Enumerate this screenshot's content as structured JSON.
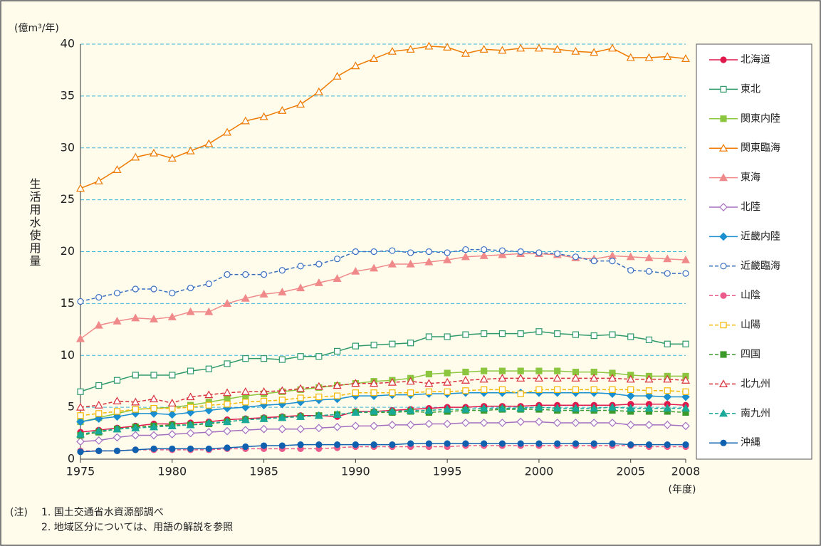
{
  "chart_data": {
    "type": "line",
    "y_unit": "(億m³/年)",
    "y_label": "生活用水使用量",
    "x_unit": "(年度)",
    "x": [
      1975,
      1976,
      1977,
      1978,
      1979,
      1980,
      1981,
      1982,
      1983,
      1984,
      1985,
      1986,
      1987,
      1988,
      1989,
      1990,
      1991,
      1992,
      1993,
      1994,
      1995,
      1996,
      1997,
      1998,
      1999,
      2000,
      2001,
      2002,
      2003,
      2004,
      2005,
      2006,
      2007,
      2008
    ],
    "xlim": [
      1975,
      2008
    ],
    "xticks": [
      1975,
      1980,
      1985,
      1990,
      1995,
      2000,
      2005,
      2008
    ],
    "ylim": [
      0,
      40
    ],
    "yticks": [
      0,
      5,
      10,
      15,
      20,
      25,
      30,
      35,
      40
    ],
    "grid": true,
    "legend": "right",
    "series": [
      {
        "name": "北海道",
        "color": "#e0184c",
        "marker": "circle",
        "filled": true,
        "dashed": false,
        "values": [
          2.6,
          2.8,
          3.0,
          3.2,
          3.4,
          3.4,
          3.5,
          3.6,
          3.8,
          3.9,
          4.0,
          4.1,
          4.2,
          4.2,
          4.1,
          4.6,
          4.6,
          4.7,
          4.8,
          4.9,
          5.0,
          5.0,
          5.1,
          5.1,
          5.1,
          5.2,
          5.2,
          5.2,
          5.2,
          5.2,
          5.3,
          5.3,
          5.3,
          5.2
        ]
      },
      {
        "name": "東北",
        "color": "#2e9a6a",
        "marker": "square",
        "filled": false,
        "dashed": false,
        "values": [
          6.5,
          7.1,
          7.6,
          8.1,
          8.1,
          8.1,
          8.5,
          8.7,
          9.2,
          9.7,
          9.7,
          9.6,
          9.9,
          9.9,
          10.4,
          10.9,
          11.0,
          11.1,
          11.2,
          11.8,
          11.8,
          12.0,
          12.1,
          12.1,
          12.1,
          12.3,
          12.1,
          12.0,
          11.9,
          12.0,
          11.8,
          11.5,
          11.1,
          11.1
        ]
      },
      {
        "name": "関東内陸",
        "color": "#8cc63f",
        "marker": "square",
        "filled": true,
        "dashed": false,
        "values": [
          3.6,
          4.0,
          4.4,
          4.8,
          4.9,
          5.0,
          5.2,
          5.5,
          5.8,
          6.1,
          6.3,
          6.5,
          6.7,
          6.9,
          7.1,
          7.3,
          7.5,
          7.6,
          7.8,
          8.2,
          8.3,
          8.4,
          8.5,
          8.5,
          8.5,
          8.5,
          8.5,
          8.4,
          8.4,
          8.3,
          8.1,
          8.0,
          8.0,
          8.0
        ]
      },
      {
        "name": "関東臨海",
        "color": "#ee7a00",
        "marker": "triangle",
        "filled": false,
        "dashed": false,
        "values": [
          26.1,
          26.8,
          27.9,
          29.1,
          29.5,
          29.0,
          29.7,
          30.4,
          31.5,
          32.6,
          33.0,
          33.6,
          34.2,
          35.4,
          36.9,
          37.9,
          38.6,
          39.3,
          39.5,
          39.8,
          39.7,
          39.1,
          39.5,
          39.4,
          39.6,
          39.6,
          39.5,
          39.3,
          39.2,
          39.6,
          38.7,
          38.7,
          38.8,
          38.6
        ]
      },
      {
        "name": "東海",
        "color": "#f08a8a",
        "marker": "triangle",
        "filled": true,
        "dashed": false,
        "values": [
          11.6,
          12.9,
          13.3,
          13.6,
          13.5,
          13.7,
          14.2,
          14.2,
          15.0,
          15.5,
          15.9,
          16.1,
          16.5,
          17.0,
          17.4,
          18.1,
          18.4,
          18.8,
          18.8,
          19.0,
          19.2,
          19.5,
          19.6,
          19.7,
          19.8,
          19.8,
          19.7,
          19.4,
          19.3,
          19.6,
          19.5,
          19.4,
          19.3,
          19.2
        ]
      },
      {
        "name": "北陸",
        "color": "#a46fbf",
        "marker": "diamond",
        "filled": false,
        "dashed": false,
        "values": [
          1.7,
          1.8,
          2.1,
          2.3,
          2.3,
          2.4,
          2.5,
          2.6,
          2.7,
          2.8,
          2.9,
          2.9,
          2.9,
          3.0,
          3.1,
          3.2,
          3.2,
          3.3,
          3.3,
          3.4,
          3.4,
          3.5,
          3.5,
          3.5,
          3.6,
          3.6,
          3.5,
          3.5,
          3.5,
          3.5,
          3.3,
          3.3,
          3.3,
          3.2
        ]
      },
      {
        "name": "近畿内陸",
        "color": "#1a8fd0",
        "marker": "diamond",
        "filled": true,
        "dashed": false,
        "values": [
          3.6,
          3.9,
          4.1,
          4.4,
          4.4,
          4.3,
          4.5,
          4.7,
          4.9,
          5.0,
          5.2,
          5.3,
          5.5,
          5.7,
          5.8,
          6.1,
          6.1,
          6.2,
          6.2,
          6.3,
          6.3,
          6.4,
          6.4,
          6.4,
          6.4,
          6.4,
          6.4,
          6.4,
          6.4,
          6.3,
          6.1,
          6.1,
          6.0,
          6.0
        ]
      },
      {
        "name": "近畿臨海",
        "color": "#3a6fc0",
        "marker": "circle",
        "filled": false,
        "dashed": true,
        "values": [
          15.2,
          15.6,
          16.0,
          16.4,
          16.4,
          16.0,
          16.5,
          16.9,
          17.8,
          17.8,
          17.8,
          18.2,
          18.6,
          18.8,
          19.3,
          20.0,
          20.0,
          20.1,
          19.9,
          20.0,
          19.9,
          20.2,
          20.2,
          20.1,
          20.0,
          19.9,
          19.8,
          19.5,
          19.1,
          19.1,
          18.2,
          18.1,
          17.9,
          17.9
        ]
      },
      {
        "name": "山陰",
        "color": "#ea5a8a",
        "marker": "circle",
        "filled": true,
        "dashed": true,
        "values": [
          0.8,
          0.8,
          0.8,
          0.9,
          0.9,
          0.9,
          0.9,
          0.9,
          1.0,
          1.0,
          1.0,
          1.0,
          1.0,
          1.0,
          1.1,
          1.2,
          1.2,
          1.2,
          1.2,
          1.2,
          1.2,
          1.3,
          1.3,
          1.3,
          1.3,
          1.3,
          1.3,
          1.3,
          1.3,
          1.3,
          1.3,
          1.2,
          1.2,
          1.2
        ]
      },
      {
        "name": "山陽",
        "color": "#f5b800",
        "marker": "square",
        "filled": false,
        "dashed": true,
        "values": [
          4.2,
          4.4,
          4.6,
          4.8,
          4.9,
          4.9,
          5.0,
          5.2,
          5.3,
          5.5,
          5.6,
          5.7,
          5.9,
          6.0,
          6.1,
          6.4,
          6.4,
          6.4,
          6.4,
          6.5,
          6.5,
          6.6,
          6.7,
          6.7,
          6.3,
          6.7,
          6.7,
          6.7,
          6.7,
          6.7,
          6.7,
          6.6,
          6.6,
          6.5
        ]
      },
      {
        "name": "四国",
        "color": "#3c9a2a",
        "marker": "square",
        "filled": true,
        "dashed": true,
        "values": [
          2.3,
          2.6,
          2.9,
          3.1,
          3.2,
          3.3,
          3.3,
          3.4,
          3.6,
          3.8,
          3.9,
          4.0,
          4.1,
          4.2,
          4.3,
          4.5,
          4.5,
          4.5,
          4.6,
          4.5,
          4.6,
          4.7,
          4.7,
          4.8,
          4.8,
          4.8,
          4.7,
          4.7,
          4.7,
          4.7,
          4.6,
          4.6,
          4.6,
          4.5
        ]
      },
      {
        "name": "北九州",
        "color": "#d8303a",
        "marker": "triangle",
        "filled": false,
        "dashed": true,
        "values": [
          5.0,
          5.2,
          5.6,
          5.5,
          5.8,
          5.4,
          6.0,
          6.2,
          6.4,
          6.5,
          6.5,
          6.6,
          6.8,
          7.0,
          7.1,
          7.3,
          7.3,
          7.4,
          7.5,
          7.3,
          7.4,
          7.6,
          7.7,
          7.8,
          7.8,
          7.8,
          7.8,
          7.8,
          7.8,
          7.8,
          7.7,
          7.7,
          7.7,
          7.6
        ]
      },
      {
        "name": "南九州",
        "color": "#1aa898",
        "marker": "triangle",
        "filled": true,
        "dashed": true,
        "values": [
          2.4,
          2.7,
          2.9,
          3.0,
          3.1,
          3.2,
          3.3,
          3.5,
          3.6,
          3.8,
          3.9,
          4.0,
          4.1,
          4.2,
          4.3,
          4.5,
          4.6,
          4.6,
          4.7,
          4.7,
          4.8,
          4.8,
          4.9,
          4.9,
          4.9,
          5.0,
          4.9,
          4.9,
          4.9,
          5.0,
          4.9,
          4.9,
          4.9,
          4.9
        ]
      },
      {
        "name": "沖縄",
        "color": "#1060b0",
        "marker": "circle",
        "filled": true,
        "dashed": false,
        "values": [
          0.7,
          0.8,
          0.8,
          0.9,
          1.0,
          1.0,
          1.0,
          1.0,
          1.1,
          1.2,
          1.3,
          1.3,
          1.4,
          1.4,
          1.4,
          1.4,
          1.4,
          1.4,
          1.5,
          1.5,
          1.5,
          1.5,
          1.5,
          1.5,
          1.5,
          1.5,
          1.5,
          1.5,
          1.5,
          1.5,
          1.4,
          1.4,
          1.4,
          1.4
        ]
      }
    ],
    "notes": {
      "prefix": "(注)",
      "items": [
        "1. 国土交通省水資源部調べ",
        "2. 地域区分については、用語の解説を参照"
      ]
    }
  }
}
